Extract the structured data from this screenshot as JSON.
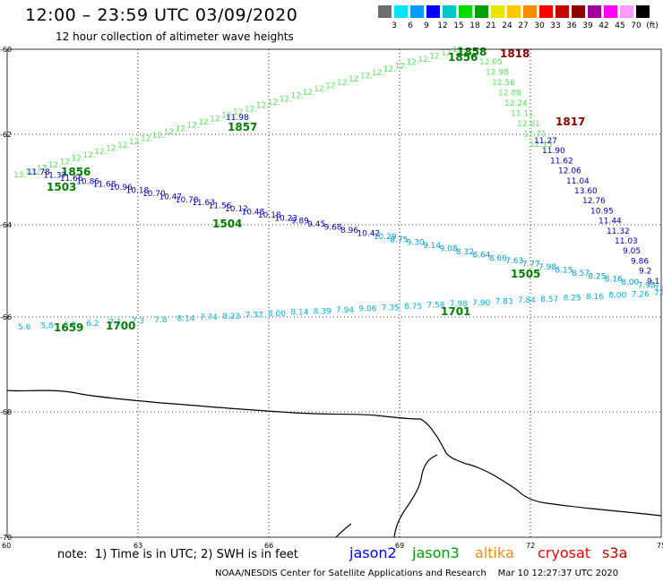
{
  "header": {
    "title": "12:00 – 23:59 UTC 03/09/2020",
    "subtitle": "12 hour collection of altimeter wave heights"
  },
  "colorbar": {
    "unit": "(ft)",
    "colors": [
      "#6e6e6e",
      "#00e5ff",
      "#009cff",
      "#0000ff",
      "#00c8c8",
      "#00dc00",
      "#00a000",
      "#e6e600",
      "#ffc800",
      "#ff8c00",
      "#ff0000",
      "#c80000",
      "#8c0000",
      "#a000a0",
      "#ff00ff",
      "#ff9bff",
      "#000000"
    ],
    "labels": [
      "3",
      "6",
      "9",
      "12",
      "15",
      "18",
      "21",
      "24",
      "27",
      "30",
      "33",
      "36",
      "39",
      "42",
      "45",
      "70"
    ]
  },
  "axes": {
    "lat_ticks": [
      "-60",
      "-62",
      "-64",
      "-66",
      "-68",
      "-70"
    ],
    "lon_ticks": [
      "60",
      "63",
      "66",
      "69",
      "72",
      "75"
    ]
  },
  "tracks": {
    "jason3_upper": {
      "color": "#3cc83c",
      "times": [
        {
          "t": "1856",
          "c": "#008000"
        },
        {
          "t": "1857",
          "c": "#008000"
        },
        {
          "t": "1858",
          "c": "#008000"
        },
        {
          "t": "1856",
          "c": "#008000"
        },
        {
          "t": "1503",
          "c": "#008000"
        }
      ],
      "values": [
        "13.",
        "12.",
        "12.",
        "12.",
        "12.",
        "12.",
        "12.",
        "12.",
        "12.",
        "12.",
        "12.",
        "12.",
        "12.",
        "12.",
        "12.",
        "12.",
        "12.",
        "12.",
        "12.",
        "12.",
        "12.",
        "12.",
        "12.",
        "12.",
        "12.",
        "12.",
        "12.",
        "12.",
        "12.",
        "12.",
        "12.",
        "12.",
        "12.",
        "12.",
        "12.",
        "12.",
        "12.",
        "12.",
        "12."
      ],
      "right_values": [
        "12.05",
        "12.98",
        "12.56",
        "12.88",
        "12.24",
        "11.11",
        "12.81",
        "12.71",
        "12.13"
      ]
    },
    "jason2_upper": {
      "color": "#0000c8",
      "label": "11.98",
      "values": [
        "11.27",
        "11.90",
        "11.62",
        "12.06",
        "11.04",
        "13.60",
        "12.76",
        "10.95",
        "11.44",
        "11.32",
        "11.03",
        "9.05",
        "9.86",
        "9.2",
        "9.1"
      ]
    },
    "middle": {
      "values": [
        "11.78",
        "11.37",
        "11.66",
        "10.86",
        "11.68",
        "10.96",
        "10.18",
        "10.70",
        "10.47",
        "10.78",
        "11.63",
        "11.56",
        "10.12",
        "10.48",
        "10.18",
        "10.23",
        "9.89",
        "9.45",
        "9.68",
        "8.96",
        "10.42",
        "10.29",
        "8.75",
        "9.30",
        "9.14",
        "9.08",
        "8.32",
        "8.64",
        "8.66",
        "7.63",
        "7.77",
        "7.98",
        "8.15",
        "8.57",
        "8.25",
        "8.16",
        "8.00",
        "7.98",
        "7.8"
      ],
      "time": "1504",
      "time2": "1505"
    },
    "lower": {
      "values": [
        "5.6",
        "5.8",
        "6.0",
        "6.2",
        "7.1",
        "7.3",
        "7.8",
        "8.14",
        "7.74",
        "8.23",
        "7.37",
        "8.00",
        "8.14",
        "8.39",
        "7.94",
        "9.06",
        "7.35",
        "8.75",
        "7.58",
        "7.98",
        "7.90",
        "7.83",
        "7.84",
        "8.57",
        "8.25",
        "8.16",
        "8.00",
        "7.26",
        "7.8"
      ],
      "times": [
        "1659",
        "1700",
        "1701"
      ]
    },
    "cryosat": {
      "t1": "1818",
      "t2": "1817",
      "color": "#8c0000"
    }
  },
  "legend": {
    "note": "note:  1) Time is in UTC; 2) SWH is in feet",
    "sats": [
      {
        "name": "jason2",
        "color": "#0000ff"
      },
      {
        "name": "jason3",
        "color": "#00a000"
      },
      {
        "name": "altika",
        "color": "#ff8c00"
      },
      {
        "name": "cryosat",
        "color": "#ff0000"
      },
      {
        "name": "s3a",
        "color": "#c80000"
      }
    ]
  },
  "footer": "NOAA/NESDIS Center for Satellite Applications and Research    Mar 10 12:27:37 UTC 2020"
}
